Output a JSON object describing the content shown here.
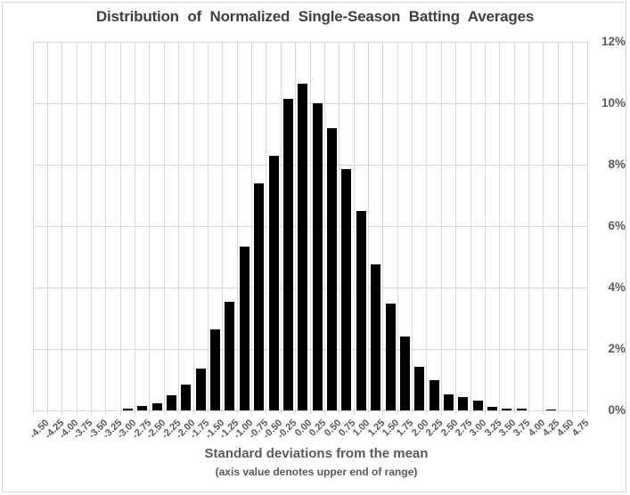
{
  "title": "Distribution  of  Normalized  Single-Season  Batting Averages",
  "x_axis": {
    "label": "Standard deviations from the mean",
    "note": "(axis value denotes upper end of range)"
  },
  "colors": {
    "bar": "#000000",
    "gridline": "#d9d9d9",
    "axis_text": "#595959",
    "title_text": "#3f3f3f"
  },
  "chart_data": {
    "type": "bar",
    "title": "Distribution  of  Normalized  Single-Season  Batting Averages",
    "xlabel": "Standard deviations from the mean",
    "xlabel_note": "(axis value denotes upper end of range)",
    "ylabel": "",
    "unit": "%",
    "ylim": [
      0,
      12
    ],
    "y_tick_step": 2,
    "y_tick_labels": [
      "0%",
      "2%",
      "4%",
      "6%",
      "8%",
      "10%",
      "12%"
    ],
    "y_axis_side": "right",
    "grid": "both",
    "legend_position": "none",
    "categories": [
      "-4.50",
      "-4.25",
      "-4.00",
      "-3.75",
      "-3.50",
      "-3.25",
      "-3.00",
      "-2.75",
      "-2.50",
      "-2.25",
      "-2.00",
      "-1.75",
      "-1.50",
      "-1.25",
      "-1.00",
      "-0.75",
      "-0.50",
      "-0.25",
      "0.00",
      "0.25",
      "0.50",
      "0.75",
      "1.00",
      "1.25",
      "1.50",
      "1.75",
      "2.00",
      "2.25",
      "2.50",
      "2.75",
      "3.00",
      "3.25",
      "3.50",
      "3.75",
      "4.00",
      "4.25",
      "4.50",
      "4.75"
    ],
    "values": [
      0,
      0,
      0,
      0,
      0,
      0,
      0.05,
      0.15,
      0.23,
      0.5,
      0.84,
      1.36,
      2.64,
      3.53,
      5.32,
      7.4,
      8.28,
      10.15,
      10.65,
      10.0,
      9.19,
      7.86,
      6.5,
      4.75,
      3.48,
      2.41,
      1.42,
      1.0,
      0.52,
      0.44,
      0.32,
      0.11,
      0.05,
      0.06,
      0,
      0.03,
      0,
      0
    ]
  }
}
